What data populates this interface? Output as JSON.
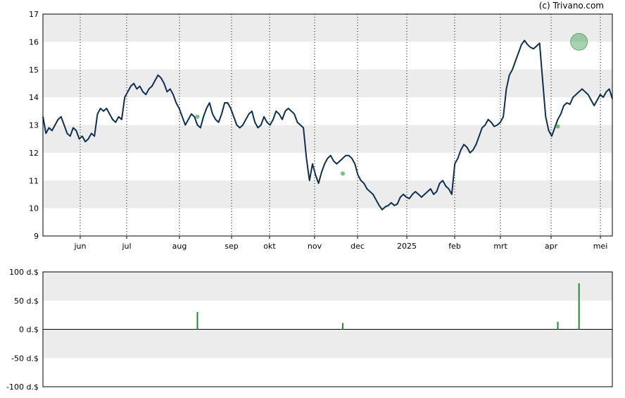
{
  "copyright": "(c) Trivano.com",
  "chart_data": [
    {
      "type": "line",
      "title": "",
      "xlabel": "",
      "ylabel": "",
      "ylim": [
        9,
        17
      ],
      "yticks": [
        9,
        10,
        11,
        12,
        13,
        14,
        15,
        16,
        17
      ],
      "x_tick_labels": [
        "jun",
        "jul",
        "aug",
        "sep",
        "okt",
        "nov",
        "dec",
        "2025",
        "feb",
        "mrt",
        "apr",
        "mei"
      ],
      "grid": "alternating horizontal bands, dotted vertical month lines",
      "line_color": "#0d3050",
      "series": [
        {
          "values": [
            13.3,
            12.7,
            12.9,
            12.8,
            13.0,
            13.2,
            13.3,
            13.0,
            12.7,
            12.6,
            12.9,
            12.8,
            12.5,
            12.6,
            12.4,
            12.5,
            12.7,
            12.6,
            13.4,
            13.6,
            13.5,
            13.6,
            13.4,
            13.2,
            13.1,
            13.3,
            13.2,
            14.0,
            14.2,
            14.4,
            14.5,
            14.3,
            14.4,
            14.2,
            14.1,
            14.3,
            14.4,
            14.6,
            14.8,
            14.7,
            14.5,
            14.2,
            14.3,
            14.1,
            13.8,
            13.6,
            13.3,
            13.0,
            13.2,
            13.4,
            13.3,
            13.0,
            12.9,
            13.3,
            13.6,
            13.8,
            13.4,
            13.2,
            13.1,
            13.4,
            13.8,
            13.8,
            13.6,
            13.3,
            13.0,
            12.9,
            13.0,
            13.2,
            13.4,
            13.5,
            13.1,
            12.9,
            13.0,
            13.3,
            13.1,
            13.0,
            13.2,
            13.5,
            13.4,
            13.2,
            13.5,
            13.6,
            13.5,
            13.4,
            13.1,
            13.0,
            12.9,
            11.8,
            11.0,
            11.6,
            11.2,
            10.9,
            11.3,
            11.6,
            11.8,
            11.9,
            11.7,
            11.6,
            11.7,
            11.8,
            11.9,
            11.9,
            11.8,
            11.6,
            11.2,
            11.0,
            10.9,
            10.7,
            10.6,
            10.5,
            10.3,
            10.1,
            9.95,
            10.05,
            10.1,
            10.2,
            10.1,
            10.15,
            10.4,
            10.5,
            10.4,
            10.35,
            10.5,
            10.6,
            10.5,
            10.4,
            10.5,
            10.6,
            10.7,
            10.5,
            10.6,
            10.9,
            11.0,
            10.8,
            10.7,
            10.5,
            11.6,
            11.8,
            12.1,
            12.3,
            12.2,
            12.0,
            12.1,
            12.3,
            12.6,
            12.9,
            13.0,
            13.2,
            13.1,
            12.95,
            13.0,
            13.1,
            13.3,
            14.3,
            14.8,
            15.0,
            15.3,
            15.6,
            15.9,
            16.05,
            15.9,
            15.8,
            15.75,
            15.85,
            15.95,
            14.6,
            13.3,
            12.8,
            12.6,
            12.9,
            13.2,
            13.4,
            13.7,
            13.8,
            13.75,
            14.0,
            14.1,
            14.2,
            14.3,
            14.2,
            14.1,
            13.9,
            13.7,
            13.9,
            14.1,
            14.0,
            14.2,
            14.3,
            13.95
          ]
        }
      ],
      "markers": [
        {
          "type": "dividend",
          "index": 51,
          "value": 13.3
        },
        {
          "type": "dividend",
          "index": 99,
          "value": 11.25
        },
        {
          "type": "dividend",
          "index": 170,
          "value": 12.95
        },
        {
          "type": "highlight",
          "index": 177,
          "value": 16.0
        }
      ]
    },
    {
      "type": "bar",
      "title": "",
      "xlabel": "",
      "ylabel": "",
      "ylim": [
        -100,
        100
      ],
      "ytick_labels": [
        "100 d.$",
        "50 d.$",
        "0 d.$",
        "-50 d.$",
        "-100 d.$"
      ],
      "yticks": [
        100,
        50,
        0,
        -50,
        -100
      ],
      "bar_color": "#1f8a2e",
      "series": [
        {
          "values": [
            {
              "index": 51,
              "value": 30
            },
            {
              "index": 99,
              "value": 11
            },
            {
              "index": 170,
              "value": 13
            },
            {
              "index": 177,
              "value": 80
            }
          ]
        }
      ]
    }
  ]
}
